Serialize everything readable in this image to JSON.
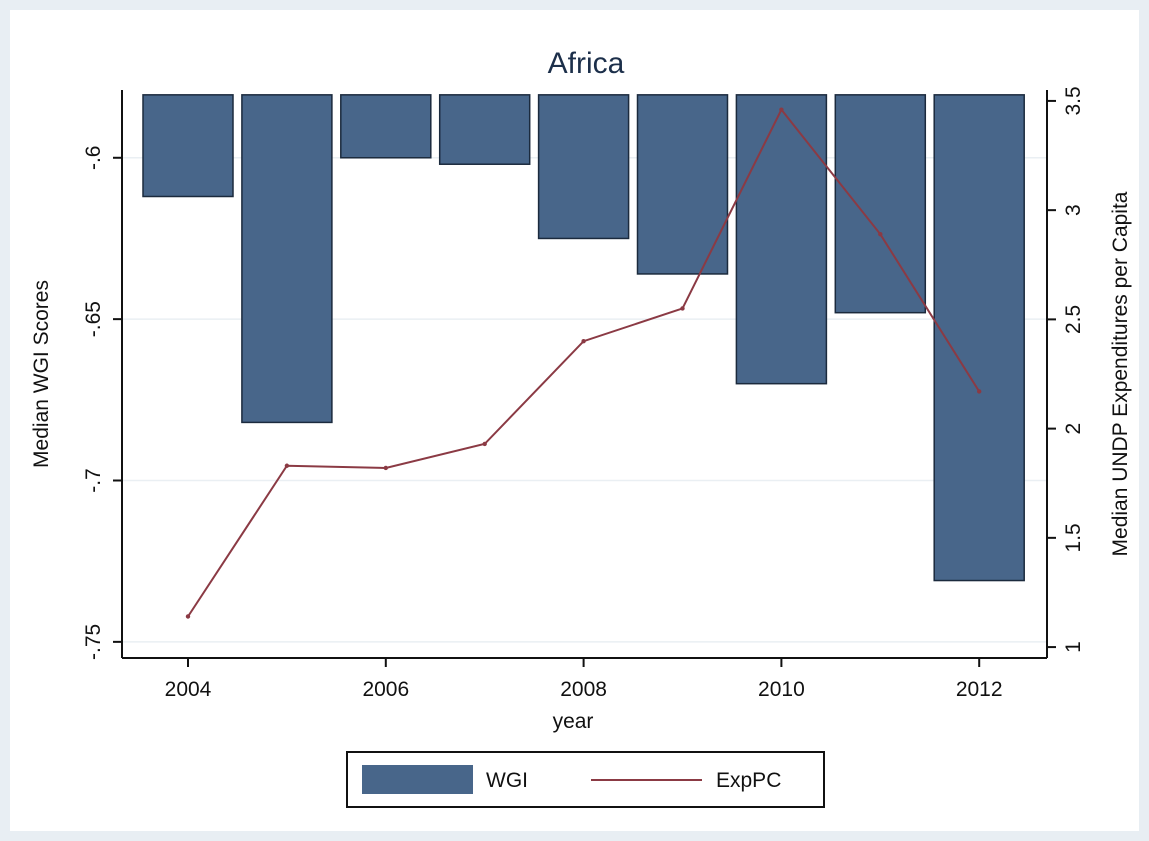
{
  "chart_data": {
    "type": "bar",
    "title": "Africa",
    "xlabel": "year",
    "ylabel_left": "Median WGI Scores",
    "ylabel_right": "Median UNDP Expenditures per Capita",
    "x": [
      2004,
      2005,
      2006,
      2007,
      2008,
      2009,
      2010,
      2011,
      2012
    ],
    "x_ticks": [
      "2004",
      "2006",
      "2008",
      "2010",
      "2012"
    ],
    "ylim_left": [
      -0.755,
      -0.579
    ],
    "y_ticks_left": [
      "-.6",
      "-.65",
      "-.7",
      "-.75"
    ],
    "ylim_right": [
      0.95,
      3.55
    ],
    "y_ticks_right": [
      "1",
      "1.5",
      "2",
      "2.5",
      "3",
      "3.5"
    ],
    "bar_base_left": -0.5805,
    "series": [
      {
        "name": "WGI",
        "type": "bar",
        "axis": "left",
        "color": "#48668a",
        "values": [
          -0.612,
          -0.682,
          -0.6,
          -0.602,
          -0.625,
          -0.636,
          -0.67,
          -0.648,
          -0.731
        ]
      },
      {
        "name": "ExpPC",
        "type": "line",
        "axis": "right",
        "color": "#8b3a44",
        "values": [
          1.14,
          1.83,
          1.82,
          1.93,
          2.4,
          2.55,
          3.46,
          2.89,
          2.17
        ]
      }
    ],
    "grid": true,
    "legend_position": "bottom"
  }
}
